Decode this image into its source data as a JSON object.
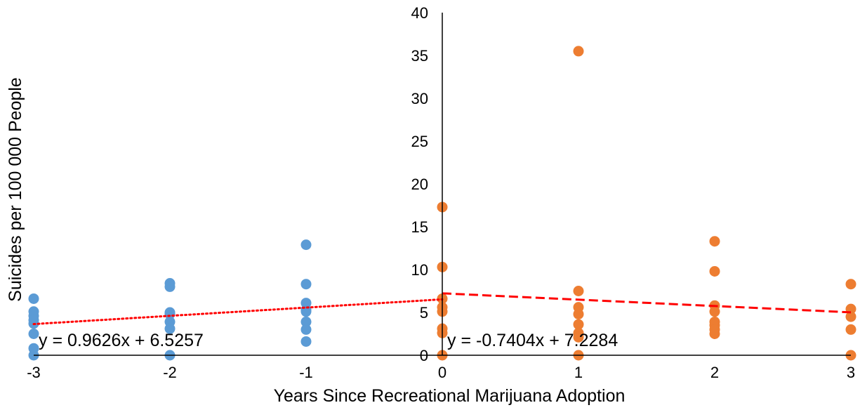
{
  "chart_data": {
    "type": "scatter",
    "title": "",
    "xlabel": "Years Since Recreational Marijuana Adoption",
    "ylabel": "Suicides per 100 000 People",
    "xlim": [
      -3,
      3
    ],
    "ylim": [
      0,
      40
    ],
    "x_ticks": [
      -3,
      -2,
      -1,
      0,
      1,
      2,
      3
    ],
    "y_ticks": [
      0,
      5,
      10,
      15,
      20,
      25,
      30,
      35,
      40
    ],
    "x_tick_labels": [
      "-3",
      "-2",
      "-1",
      "0",
      "1",
      "2",
      "3"
    ],
    "y_tick_labels": [
      "0",
      "5",
      "10",
      "15",
      "20",
      "25",
      "30",
      "35",
      "40"
    ],
    "grid": false,
    "series": [
      {
        "color": "#5b9bd5",
        "points": [
          {
            "x": -3,
            "y": 6.6
          },
          {
            "x": -3,
            "y": 5.1
          },
          {
            "x": -3,
            "y": 4.6
          },
          {
            "x": -3,
            "y": 4.1
          },
          {
            "x": -3,
            "y": 3.7
          },
          {
            "x": -3,
            "y": 2.5
          },
          {
            "x": -3,
            "y": 0.8
          },
          {
            "x": -3,
            "y": 0.0
          },
          {
            "x": -2,
            "y": 8.4
          },
          {
            "x": -2,
            "y": 8.0
          },
          {
            "x": -2,
            "y": 5.0
          },
          {
            "x": -2,
            "y": 4.8
          },
          {
            "x": -2,
            "y": 3.9
          },
          {
            "x": -2,
            "y": 3.1
          },
          {
            "x": -2,
            "y": 0.0
          },
          {
            "x": -1,
            "y": 12.9
          },
          {
            "x": -1,
            "y": 8.3
          },
          {
            "x": -1,
            "y": 6.1
          },
          {
            "x": -1,
            "y": 5.3
          },
          {
            "x": -1,
            "y": 5.1
          },
          {
            "x": -1,
            "y": 3.9
          },
          {
            "x": -1,
            "y": 3.0
          },
          {
            "x": -1,
            "y": 1.6
          }
        ],
        "trendline": {
          "equation": "y = 0.9626x + 6.5257",
          "x_range": [
            -3,
            0
          ],
          "style": "dotted",
          "color": "#ff0000"
        }
      },
      {
        "color": "#ed7d31",
        "points": [
          {
            "x": 0,
            "y": 17.3
          },
          {
            "x": 0,
            "y": 10.3
          },
          {
            "x": 0,
            "y": 6.6
          },
          {
            "x": 0,
            "y": 5.6
          },
          {
            "x": 0,
            "y": 5.1
          },
          {
            "x": 0,
            "y": 3.1
          },
          {
            "x": 0,
            "y": 2.6
          },
          {
            "x": 0,
            "y": 0.0
          },
          {
            "x": 1,
            "y": 35.5
          },
          {
            "x": 1,
            "y": 7.5
          },
          {
            "x": 1,
            "y": 5.6
          },
          {
            "x": 1,
            "y": 4.8
          },
          {
            "x": 1,
            "y": 3.6
          },
          {
            "x": 1,
            "y": 2.6
          },
          {
            "x": 1,
            "y": 2.1
          },
          {
            "x": 1,
            "y": 0.0
          },
          {
            "x": 2,
            "y": 13.3
          },
          {
            "x": 2,
            "y": 9.8
          },
          {
            "x": 2,
            "y": 5.8
          },
          {
            "x": 2,
            "y": 5.1
          },
          {
            "x": 2,
            "y": 3.9
          },
          {
            "x": 2,
            "y": 3.5
          },
          {
            "x": 2,
            "y": 3.0
          },
          {
            "x": 2,
            "y": 2.5
          },
          {
            "x": 3,
            "y": 8.3
          },
          {
            "x": 3,
            "y": 5.4
          },
          {
            "x": 3,
            "y": 4.5
          },
          {
            "x": 3,
            "y": 3.0
          },
          {
            "x": 3,
            "y": 0.0
          }
        ],
        "trendline": {
          "equation": "y = -0.7404x + 7.2284",
          "x_range": [
            0,
            3
          ],
          "style": "dashed",
          "color": "#ff0000"
        }
      }
    ]
  }
}
